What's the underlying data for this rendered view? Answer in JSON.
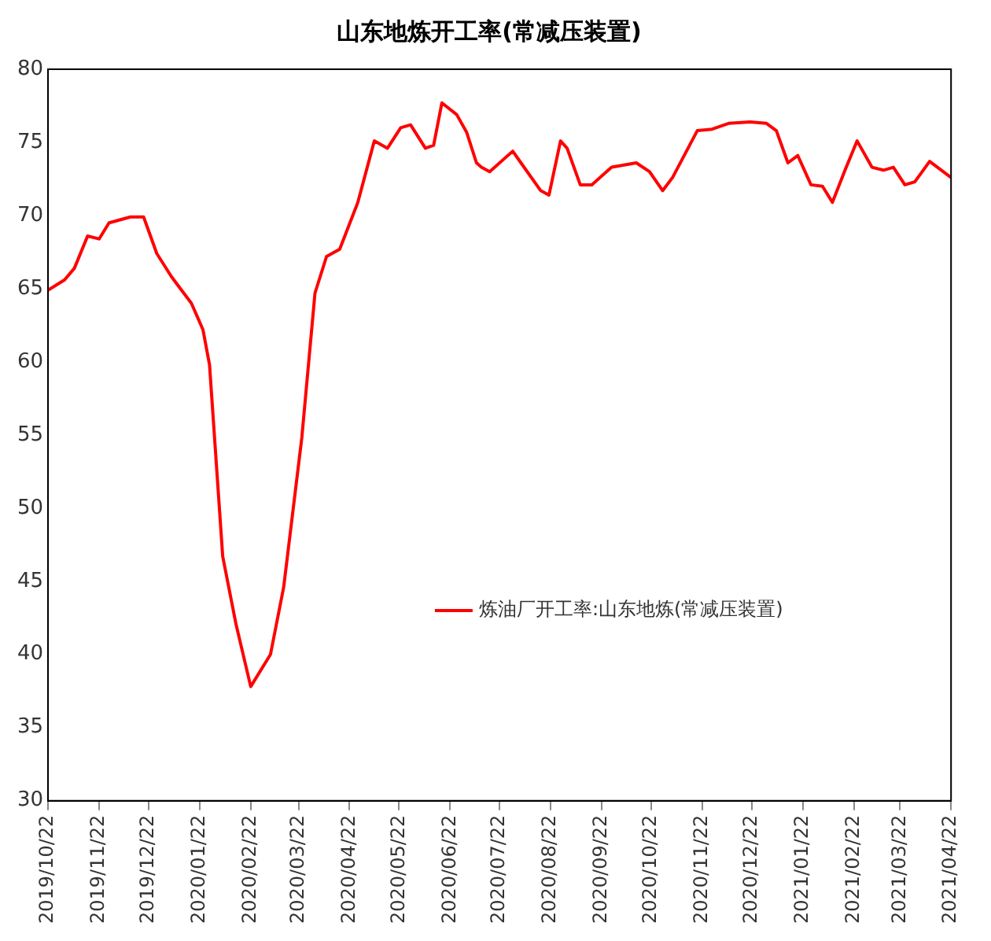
{
  "chart_data": {
    "type": "line",
    "title": "山东地炼开工率(常减压装置)",
    "x": [
      "2019-10-22",
      "2019-11-01",
      "2019-11-07",
      "2019-11-15",
      "2019-11-22",
      "2019-11-28",
      "2019-12-11",
      "2019-12-19",
      "2019-12-27",
      "2020-01-05",
      "2020-01-17",
      "2020-01-24",
      "2020-01-28",
      "2020-02-05",
      "2020-02-13",
      "2020-02-22",
      "2020-03-05",
      "2020-03-13",
      "2020-03-24",
      "2020-04-01",
      "2020-04-08",
      "2020-04-16",
      "2020-04-27",
      "2020-05-07",
      "2020-05-15",
      "2020-05-23",
      "2020-05-29",
      "2020-06-07",
      "2020-06-12",
      "2020-06-17",
      "2020-06-26",
      "2020-07-02",
      "2020-07-08",
      "2020-07-11",
      "2020-07-16",
      "2020-07-30",
      "2020-08-04",
      "2020-08-16",
      "2020-08-21",
      "2020-08-28",
      "2020-09-01",
      "2020-09-09",
      "2020-09-16",
      "2020-09-28",
      "2020-10-13",
      "2020-10-21",
      "2020-10-29",
      "2020-11-04",
      "2020-11-19",
      "2020-11-28",
      "2020-12-08",
      "2020-12-21",
      "2020-12-31",
      "2021-01-06",
      "2021-01-13",
      "2021-01-19",
      "2021-01-27",
      "2021-02-03",
      "2021-02-09",
      "2021-02-17",
      "2021-02-24",
      "2021-03-05",
      "2021-03-12",
      "2021-03-18",
      "2021-03-25",
      "2021-03-31",
      "2021-04-09",
      "2021-04-22"
    ],
    "series": [
      {
        "name": "炼油厂开工率:山东地炼(常减压装置)",
        "color": "#ff0000",
        "values": [
          64.9,
          65.6,
          66.4,
          68.6,
          68.4,
          69.5,
          69.9,
          69.9,
          67.4,
          65.8,
          64.0,
          62.2,
          59.8,
          46.7,
          42.1,
          37.8,
          40.0,
          44.6,
          54.8,
          64.7,
          67.2,
          67.7,
          70.9,
          75.1,
          74.6,
          76.0,
          76.2,
          74.6,
          74.8,
          77.7,
          76.9,
          75.7,
          73.6,
          73.3,
          73.0,
          74.4,
          73.6,
          71.7,
          71.4,
          75.1,
          74.6,
          72.1,
          72.1,
          73.3,
          73.6,
          73.0,
          71.7,
          72.6,
          75.8,
          75.9,
          76.3,
          76.4,
          76.3,
          75.8,
          73.6,
          74.1,
          72.1,
          72.0,
          70.9,
          73.2,
          75.1,
          73.3,
          73.1,
          73.3,
          72.1,
          72.3,
          73.7,
          72.6
        ]
      }
    ],
    "xlim": [
      "2019-10-22",
      "2021-04-22"
    ],
    "xticks": [
      {
        "value": "2019-10-22",
        "label": "2019/10/22"
      },
      {
        "value": "2019-11-22",
        "label": "2019/11/22"
      },
      {
        "value": "2019-12-22",
        "label": "2019/12/22"
      },
      {
        "value": "2020-01-22",
        "label": "2020/01/22"
      },
      {
        "value": "2020-02-22",
        "label": "2020/02/22"
      },
      {
        "value": "2020-03-22",
        "label": "2020/03/22"
      },
      {
        "value": "2020-04-22",
        "label": "2020/04/22"
      },
      {
        "value": "2020-05-22",
        "label": "2020/05/22"
      },
      {
        "value": "2020-06-22",
        "label": "2020/06/22"
      },
      {
        "value": "2020-07-22",
        "label": "2020/07/22"
      },
      {
        "value": "2020-08-22",
        "label": "2020/08/22"
      },
      {
        "value": "2020-09-22",
        "label": "2020/09/22"
      },
      {
        "value": "2020-10-22",
        "label": "2020/10/22"
      },
      {
        "value": "2020-11-22",
        "label": "2020/11/22"
      },
      {
        "value": "2020-12-22",
        "label": "2020/12/22"
      },
      {
        "value": "2021-01-22",
        "label": "2021/01/22"
      },
      {
        "value": "2021-02-22",
        "label": "2021/02/22"
      },
      {
        "value": "2021-03-22",
        "label": "2021/03/22"
      },
      {
        "value": "2021-04-22",
        "label": "2021/04/22"
      }
    ],
    "ylim": [
      30,
      80
    ],
    "yticks": [
      30,
      35,
      40,
      45,
      50,
      55,
      60,
      65,
      70,
      75,
      80
    ],
    "grid": false,
    "legend": "bottom",
    "marker": "none",
    "line_style": "solid"
  }
}
